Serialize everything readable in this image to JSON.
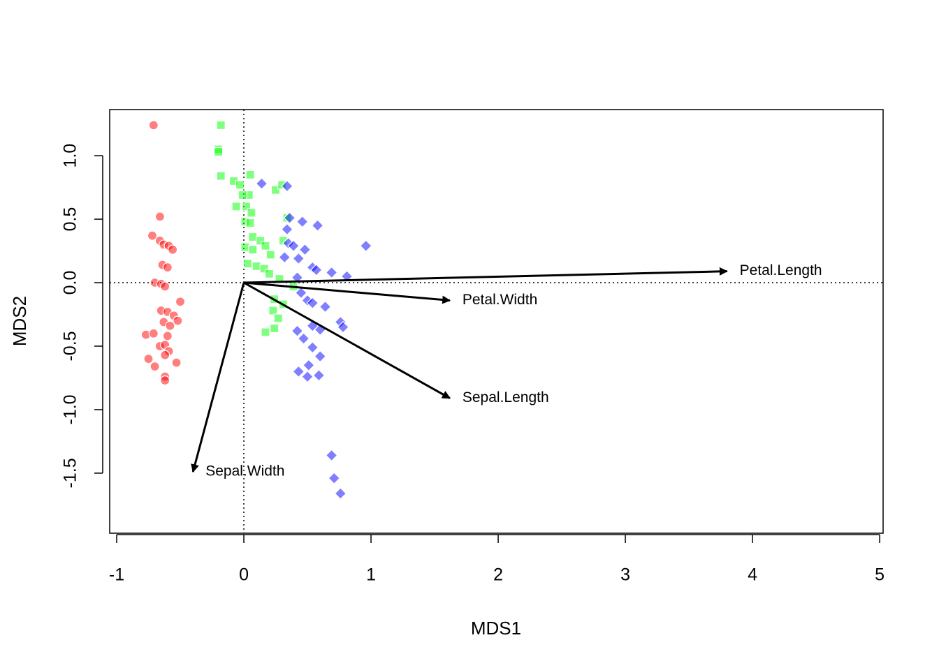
{
  "chart_data": {
    "type": "biplot",
    "x_label": "MDS1",
    "y_label": "MDS2",
    "xlim": [
      -1.055,
      5.027
    ],
    "ylim": [
      -1.973,
      1.363
    ],
    "xticks": [
      -1,
      0,
      1,
      2,
      3,
      4,
      5
    ],
    "yticks": [
      {
        "value": -1.5,
        "label": "-1.5"
      },
      {
        "value": -1,
        "label": "-1.0"
      },
      {
        "value": -0.5,
        "label": "-0.5"
      },
      {
        "value": 0,
        "label": "0.0"
      },
      {
        "value": 0.5,
        "label": "0.5"
      },
      {
        "value": 1,
        "label": "1.0"
      }
    ],
    "reference_lines": {
      "x": 0,
      "y": 0
    },
    "alpha": 0.5,
    "series": [
      {
        "color": "#ff0000",
        "marker": "circle",
        "x": [
          -0.71,
          -0.66,
          -0.72,
          -0.66,
          -0.63,
          -0.59,
          -0.56,
          -0.64,
          -0.6,
          -0.7,
          -0.65,
          -0.62,
          -0.5,
          -0.65,
          -0.6,
          -0.55,
          -0.52,
          -0.63,
          -0.58,
          -0.77,
          -0.71,
          -0.6,
          -0.66,
          -0.62,
          -0.59,
          -0.62,
          -0.53,
          -0.75,
          -0.7,
          -0.62,
          -0.62
        ],
        "y": [
          1.24,
          0.52,
          0.37,
          0.33,
          0.3,
          0.29,
          0.26,
          0.14,
          0.12,
          0.0,
          -0.01,
          -0.03,
          -0.15,
          -0.22,
          -0.23,
          -0.26,
          -0.3,
          -0.31,
          -0.34,
          -0.41,
          -0.4,
          -0.42,
          -0.5,
          -0.49,
          -0.54,
          -0.57,
          -0.63,
          -0.6,
          -0.66,
          -0.74,
          -0.77
        ]
      },
      {
        "color": "#00ff00",
        "marker": "square",
        "x": [
          -0.18,
          -0.2,
          -0.2,
          -0.18,
          0.05,
          -0.08,
          -0.03,
          0.04,
          -0.01,
          0.25,
          0.3,
          -0.06,
          0.02,
          0.06,
          0.01,
          0.05,
          0.07,
          0.13,
          0.17,
          0.01,
          0.07,
          0.21,
          0.03,
          0.1,
          0.16,
          0.2,
          0.34,
          0.31,
          0.39,
          0.24,
          0.31,
          0.23,
          0.27,
          0.24,
          0.17,
          0.28
        ],
        "y": [
          1.24,
          1.05,
          1.03,
          0.84,
          0.85,
          0.8,
          0.77,
          0.69,
          0.69,
          0.73,
          0.77,
          0.6,
          0.6,
          0.55,
          0.48,
          0.47,
          0.36,
          0.33,
          0.29,
          0.28,
          0.26,
          0.22,
          0.15,
          0.13,
          0.11,
          0.07,
          0.51,
          0.33,
          -0.03,
          -0.13,
          -0.17,
          -0.22,
          -0.28,
          -0.36,
          -0.39,
          0.03
        ]
      },
      {
        "color": "#0000ff",
        "marker": "diamond",
        "x": [
          0.14,
          0.34,
          0.36,
          0.34,
          0.46,
          0.58,
          0.96,
          0.35,
          0.39,
          0.48,
          0.32,
          0.43,
          0.54,
          0.57,
          0.69,
          0.81,
          0.42,
          0.45,
          0.5,
          0.54,
          0.64,
          0.42,
          0.47,
          0.54,
          0.6,
          0.76,
          0.78,
          0.54,
          0.6,
          0.51,
          0.43,
          0.5,
          0.59,
          0.69,
          0.71,
          0.76
        ],
        "y": [
          0.78,
          0.76,
          0.51,
          0.42,
          0.48,
          0.45,
          0.29,
          0.31,
          0.29,
          0.26,
          0.2,
          0.19,
          0.12,
          0.1,
          0.08,
          0.05,
          0.04,
          -0.08,
          -0.14,
          -0.16,
          -0.19,
          -0.38,
          -0.44,
          -0.34,
          -0.37,
          -0.31,
          -0.35,
          -0.51,
          -0.58,
          -0.65,
          -0.7,
          -0.74,
          -0.73,
          -1.36,
          -1.54,
          -1.66
        ]
      }
    ],
    "arrows": [
      {
        "name": "Petal.Length",
        "x": 3.8,
        "y": 0.09
      },
      {
        "name": "Petal.Width",
        "x": 1.62,
        "y": -0.14
      },
      {
        "name": "Sepal.Length",
        "x": 1.62,
        "y": -0.91
      },
      {
        "name": "Sepal.Width",
        "x": -0.4,
        "y": -1.49
      }
    ]
  }
}
